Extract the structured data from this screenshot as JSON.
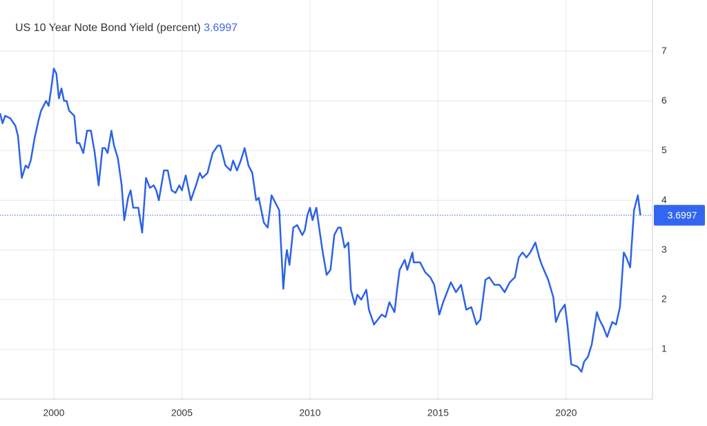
{
  "chart_data": {
    "type": "line",
    "title": "US 10 Year Note Bond Yield (percent)",
    "last_value": 3.6997,
    "color": "#2c62e6",
    "grid": true,
    "xlim": [
      1997.9,
      2023.37
    ],
    "xticks": [
      2000,
      2005,
      2010,
      2015,
      2020
    ],
    "ylim": [
      0,
      8.03
    ],
    "yticks": [
      1,
      2,
      3,
      4,
      5,
      6,
      7
    ],
    "x": [
      1997.9,
      1998.0,
      1998.1,
      1998.3,
      1998.5,
      1998.6,
      1998.75,
      1998.9,
      1999.0,
      1999.1,
      1999.25,
      1999.4,
      1999.5,
      1999.7,
      1999.8,
      1999.9,
      2000.0,
      2000.1,
      2000.2,
      2000.3,
      2000.4,
      2000.5,
      2000.6,
      2000.8,
      2000.9,
      2001.0,
      2001.15,
      2001.3,
      2001.45,
      2001.6,
      2001.75,
      2001.9,
      2002.0,
      2002.1,
      2002.25,
      2002.35,
      2002.5,
      2002.65,
      2002.75,
      2002.9,
      2003.0,
      2003.1,
      2003.3,
      2003.45,
      2003.6,
      2003.75,
      2003.9,
      2004.0,
      2004.1,
      2004.3,
      2004.45,
      2004.6,
      2004.75,
      2004.9,
      2005.0,
      2005.15,
      2005.35,
      2005.55,
      2005.7,
      2005.8,
      2006.0,
      2006.2,
      2006.4,
      2006.5,
      2006.7,
      2006.9,
      2007.0,
      2007.15,
      2007.3,
      2007.45,
      2007.6,
      2007.75,
      2007.9,
      2008.0,
      2008.2,
      2008.35,
      2008.5,
      2008.6,
      2008.8,
      2008.96,
      2009.05,
      2009.1,
      2009.2,
      2009.35,
      2009.5,
      2009.7,
      2009.8,
      2009.9,
      2010.0,
      2010.1,
      2010.25,
      2010.4,
      2010.5,
      2010.65,
      2010.8,
      2010.95,
      2011.1,
      2011.2,
      2011.35,
      2011.5,
      2011.6,
      2011.75,
      2011.85,
      2012.0,
      2012.2,
      2012.3,
      2012.5,
      2012.65,
      2012.8,
      2012.95,
      2013.1,
      2013.3,
      2013.4,
      2013.5,
      2013.7,
      2013.8,
      2014.0,
      2014.05,
      2014.3,
      2014.5,
      2014.7,
      2014.85,
      2015.05,
      2015.2,
      2015.35,
      2015.5,
      2015.7,
      2015.9,
      2016.1,
      2016.3,
      2016.5,
      2016.65,
      2016.85,
      2017.0,
      2017.2,
      2017.4,
      2017.6,
      2017.8,
      2018.0,
      2018.15,
      2018.3,
      2018.45,
      2018.6,
      2018.8,
      2018.95,
      2019.05,
      2019.3,
      2019.5,
      2019.6,
      2019.75,
      2019.95,
      2020.05,
      2020.2,
      2020.45,
      2020.6,
      2020.7,
      2020.85,
      2021.0,
      2021.2,
      2021.3,
      2021.45,
      2021.6,
      2021.8,
      2021.95,
      2022.1,
      2022.25,
      2022.35,
      2022.5,
      2022.65,
      2022.8,
      2022.9
    ],
    "values": [
      5.75,
      5.55,
      5.7,
      5.65,
      5.5,
      5.3,
      4.45,
      4.7,
      4.65,
      4.8,
      5.25,
      5.6,
      5.8,
      6.0,
      5.9,
      6.25,
      6.65,
      6.55,
      6.05,
      6.25,
      6.0,
      6.0,
      5.8,
      5.7,
      5.15,
      5.15,
      4.95,
      5.4,
      5.4,
      4.95,
      4.3,
      5.05,
      5.05,
      4.95,
      5.4,
      5.1,
      4.85,
      4.3,
      3.6,
      4.05,
      4.2,
      3.85,
      3.85,
      3.35,
      4.45,
      4.25,
      4.3,
      4.2,
      4.0,
      4.6,
      4.6,
      4.2,
      4.15,
      4.3,
      4.2,
      4.5,
      4.0,
      4.3,
      4.55,
      4.45,
      4.55,
      4.95,
      5.1,
      5.1,
      4.7,
      4.6,
      4.8,
      4.6,
      4.8,
      5.05,
      4.7,
      4.55,
      4.0,
      4.05,
      3.55,
      3.45,
      4.1,
      4.0,
      3.8,
      2.22,
      2.8,
      3.0,
      2.7,
      3.45,
      3.5,
      3.3,
      3.4,
      3.7,
      3.85,
      3.6,
      3.85,
      3.3,
      2.95,
      2.5,
      2.6,
      3.3,
      3.45,
      3.45,
      3.05,
      3.15,
      2.2,
      1.9,
      2.1,
      2.0,
      2.2,
      1.8,
      1.5,
      1.6,
      1.7,
      1.65,
      1.95,
      1.75,
      2.2,
      2.6,
      2.8,
      2.6,
      2.95,
      2.75,
      2.75,
      2.55,
      2.45,
      2.3,
      1.7,
      1.95,
      2.15,
      2.35,
      2.15,
      2.3,
      1.8,
      1.85,
      1.5,
      1.6,
      2.4,
      2.45,
      2.3,
      2.3,
      2.15,
      2.35,
      2.45,
      2.85,
      2.95,
      2.85,
      2.95,
      3.15,
      2.85,
      2.7,
      2.4,
      2.05,
      1.55,
      1.75,
      1.9,
      1.5,
      0.7,
      0.65,
      0.55,
      0.75,
      0.85,
      1.1,
      1.75,
      1.6,
      1.45,
      1.25,
      1.55,
      1.5,
      1.85,
      2.95,
      2.85,
      2.65,
      3.8,
      4.1,
      3.6997
    ]
  }
}
